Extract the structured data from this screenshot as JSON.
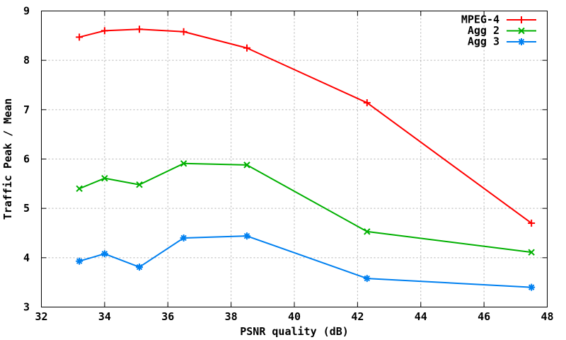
{
  "chart_data": {
    "type": "line",
    "title": "",
    "xlabel": "PSNR quality (dB)",
    "ylabel": "Traffic Peak / Mean",
    "xlim": [
      32,
      48
    ],
    "ylim": [
      3,
      9
    ],
    "xticks": [
      32,
      34,
      36,
      38,
      40,
      42,
      44,
      46,
      48
    ],
    "yticks": [
      3,
      4,
      5,
      6,
      7,
      8,
      9
    ],
    "grid": true,
    "legend_position": "top-right-inside",
    "x": [
      33.2,
      34.0,
      35.1,
      36.5,
      38.5,
      42.3,
      47.5
    ],
    "series": [
      {
        "name": "MPEG-4",
        "color": "#ff0000",
        "marker": "plus",
        "values": [
          8.47,
          8.6,
          8.63,
          8.58,
          8.25,
          7.14,
          4.7
        ]
      },
      {
        "name": "Agg 2",
        "color": "#00b000",
        "marker": "cross",
        "values": [
          5.4,
          5.61,
          5.48,
          5.91,
          5.88,
          4.53,
          4.11
        ]
      },
      {
        "name": "Agg 3",
        "color": "#0080f0",
        "marker": "asterisk",
        "values": [
          3.93,
          4.08,
          3.81,
          4.4,
          4.44,
          3.58,
          3.4
        ]
      }
    ]
  }
}
